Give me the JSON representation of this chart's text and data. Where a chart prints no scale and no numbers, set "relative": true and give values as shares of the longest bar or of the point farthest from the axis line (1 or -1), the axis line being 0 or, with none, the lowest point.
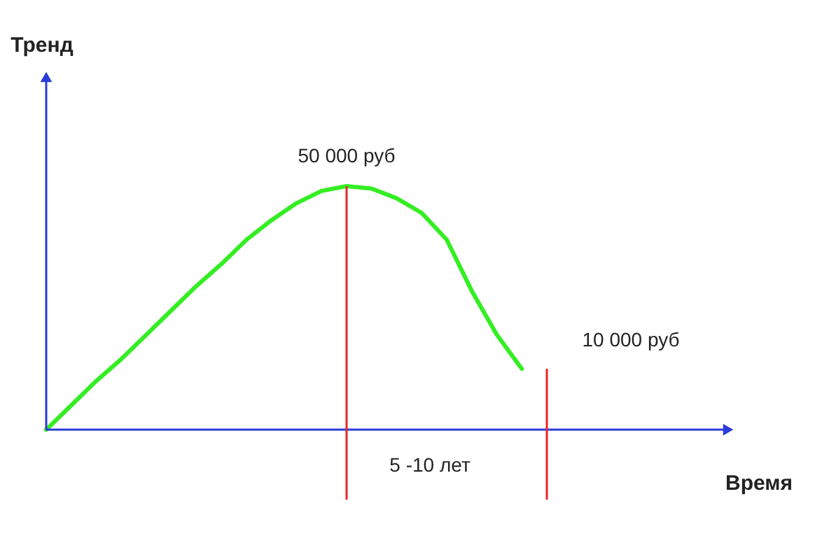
{
  "chart_data": {
    "type": "line",
    "relative": true,
    "xlabel": "Время",
    "categories": [
      null,
      null,
      null,
      null,
      null,
      null,
      null,
      null,
      null,
      null,
      null,
      null,
      null,
      null,
      null,
      null,
      null,
      null,
      null,
      null,
      null,
      null,
      null,
      null,
      null,
      null,
      null,
      null
    ],
    "series": [
      {
        "color": "#33ee22",
        "values": [
          0,
          0.1,
          0.2,
          0.29,
          0.39,
          0.49,
          0.59,
          0.68,
          0.78,
          0.86,
          0.93,
          0.98,
          1,
          0.99,
          0.95,
          0.89,
          0.78,
          0.57,
          0.39,
          0.25,
          null,
          null,
          null,
          null,
          null,
          null,
          null,
          null
        ]
      }
    ],
    "annotations": [
      "Тренд",
      "50 000 руб",
      "10 000 руб",
      "5 -10 лет"
    ]
  }
}
